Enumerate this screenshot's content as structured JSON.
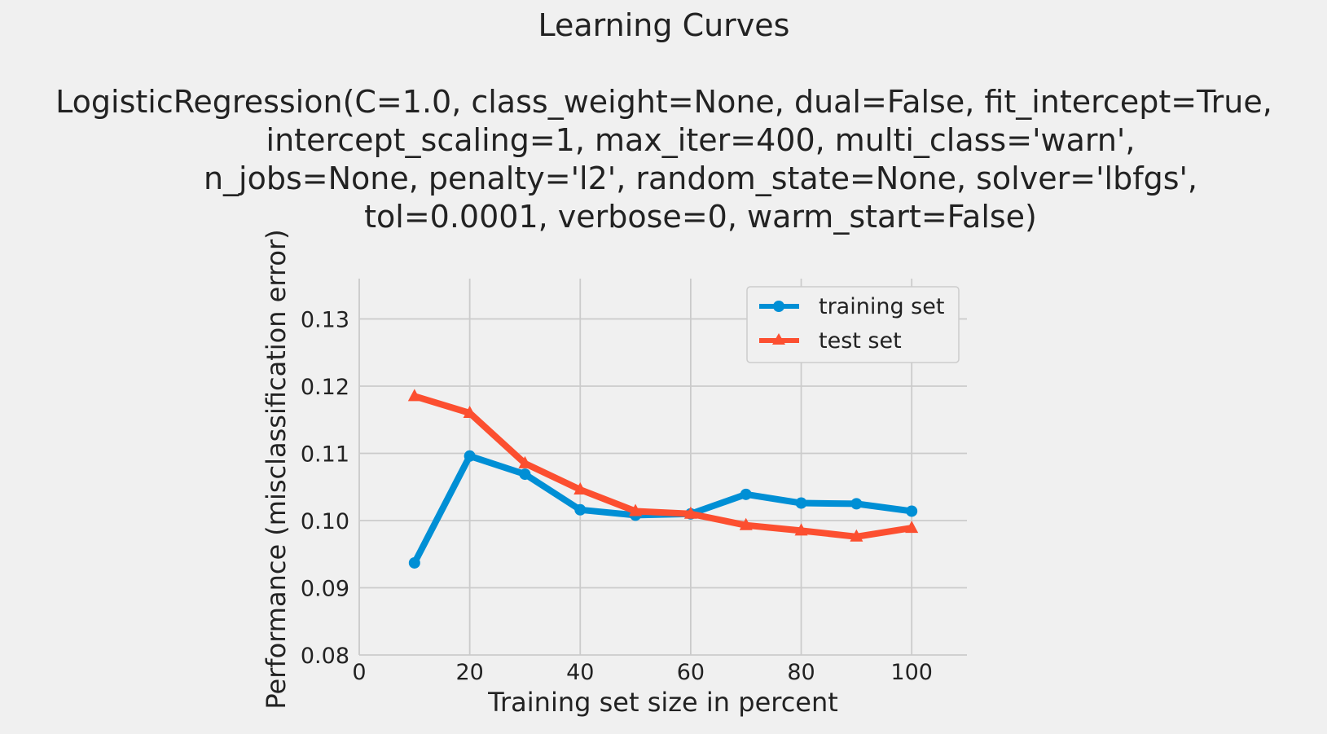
{
  "chart_data": {
    "type": "line",
    "title": "Learning Curves",
    "subtitle_lines": [
      "LogisticRegression(C=1.0, class_weight=None, dual=False, fit_intercept=True,",
      "intercept_scaling=1, max_iter=400, multi_class='warn',",
      "n_jobs=None, penalty='l2', random_state=None, solver='lbfgs',",
      "tol=0.0001, verbose=0, warm_start=False)"
    ],
    "xlabel": "Training set size in percent",
    "ylabel": "Performance (misclassification error)",
    "xlim": [
      0,
      110
    ],
    "ylim": [
      0.08,
      0.136
    ],
    "xticks": [
      0,
      20,
      40,
      60,
      80,
      100
    ],
    "xtick_labels": [
      "0",
      "20",
      "40",
      "60",
      "80",
      "100"
    ],
    "yticks": [
      0.08,
      0.09,
      0.1,
      0.11,
      0.12,
      0.13
    ],
    "ytick_labels": [
      "0.08",
      "0.09",
      "0.10",
      "0.11",
      "0.12",
      "0.13"
    ],
    "grid": true,
    "legend_position": "top-right",
    "x": [
      10,
      20,
      30,
      40,
      50,
      60,
      70,
      80,
      90,
      100
    ],
    "series": [
      {
        "name": "training set",
        "color": "#008fd5",
        "marker": "circle",
        "values": [
          0.0937,
          0.1096,
          0.1069,
          0.1016,
          0.1008,
          0.101,
          0.1039,
          0.1026,
          0.1025,
          0.1014
        ]
      },
      {
        "name": "test set",
        "color": "#fc4f30",
        "marker": "triangle",
        "values": [
          0.1185,
          0.116,
          0.1085,
          0.1046,
          0.1014,
          0.101,
          0.0993,
          0.0985,
          0.0976,
          0.0989
        ]
      }
    ]
  }
}
